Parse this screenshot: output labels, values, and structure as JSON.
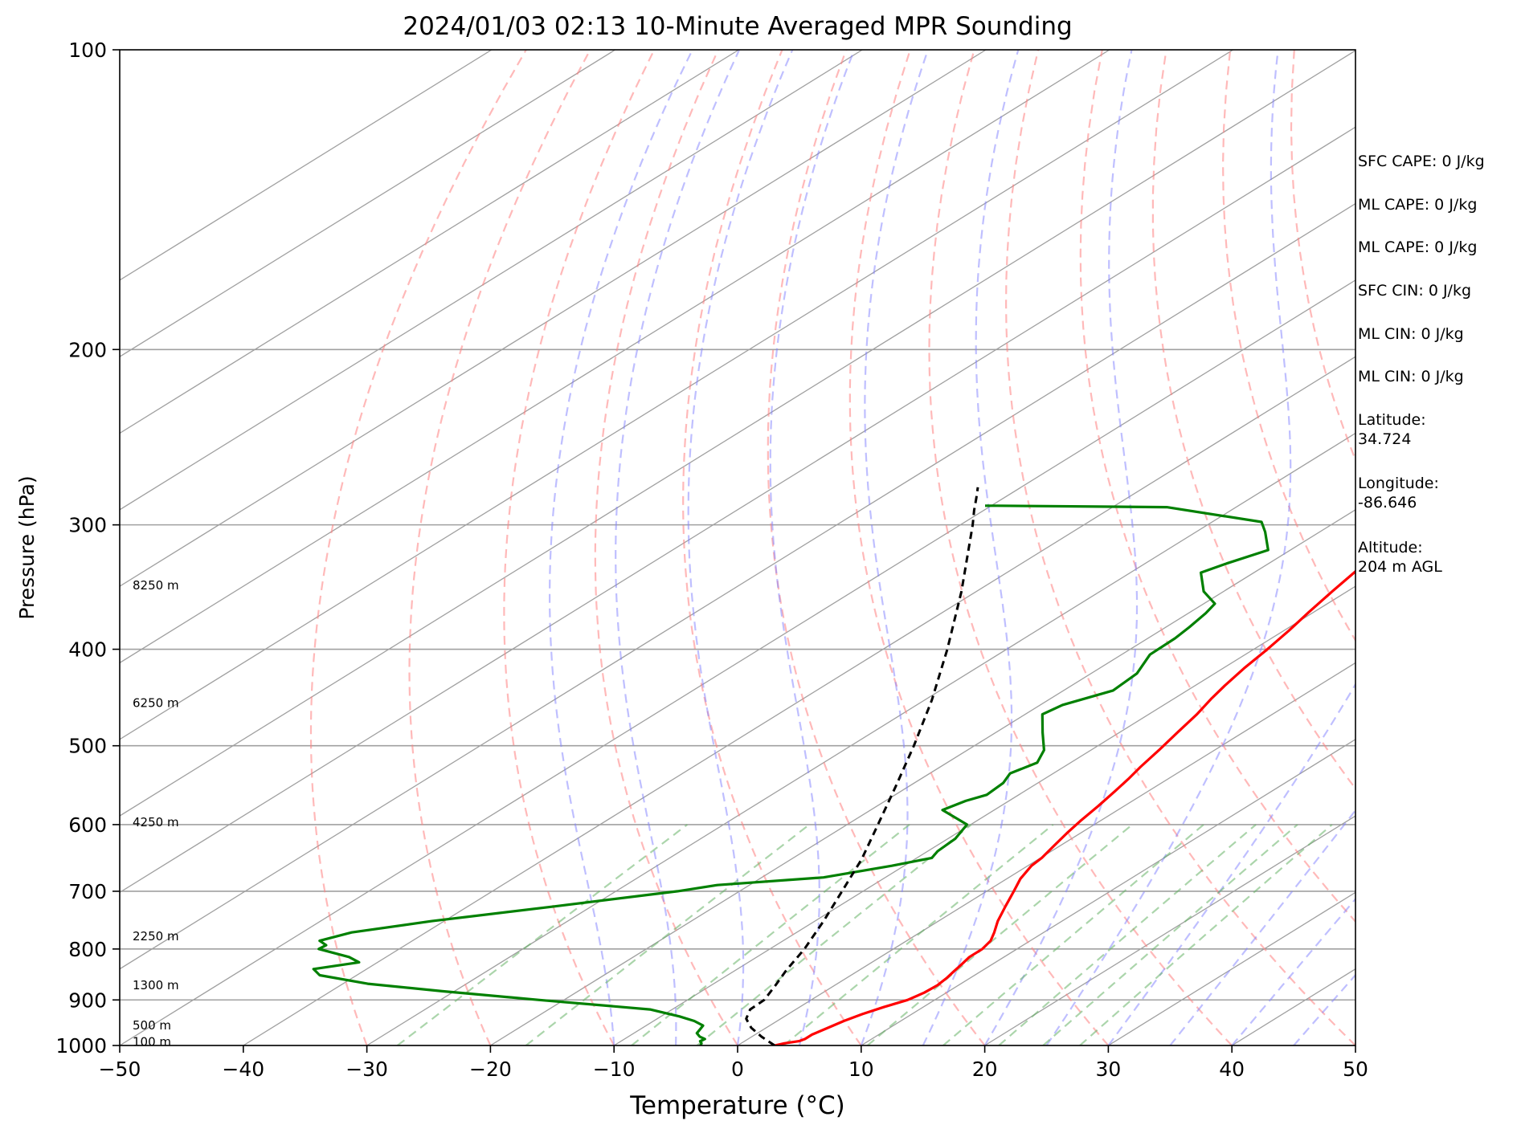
{
  "chart_data": {
    "type": "line",
    "title": "2024/01/03 02:13 10-Minute Averaged MPR Sounding",
    "xlabel": "Temperature (°C)",
    "ylabel": "Pressure (hPa)",
    "xlim": [
      -50,
      50
    ],
    "ylim": [
      1000,
      100
    ],
    "y_scale": "log",
    "x_ticks": [
      "−50",
      "−40",
      "−30",
      "−20",
      "−10",
      "0",
      "10",
      "20",
      "30",
      "40",
      "50"
    ],
    "y_ticks": [
      {
        "p": 100,
        "label": "100"
      },
      {
        "p": 200,
        "label": "200"
      },
      {
        "p": 300,
        "label": "300"
      },
      {
        "p": 400,
        "label": "400"
      },
      {
        "p": 500,
        "label": "500"
      },
      {
        "p": 600,
        "label": "600"
      },
      {
        "p": 700,
        "label": "700"
      },
      {
        "p": 800,
        "label": "800"
      },
      {
        "p": 900,
        "label": "900"
      },
      {
        "p": 1000,
        "label": "1000"
      }
    ],
    "grid": true,
    "height_labels": [
      {
        "p": 345,
        "label": "8250 m"
      },
      {
        "p": 453,
        "label": "6250 m"
      },
      {
        "p": 597,
        "label": "4250 m"
      },
      {
        "p": 777,
        "label": "2250 m"
      },
      {
        "p": 870,
        "label": "1300 m"
      },
      {
        "p": 955,
        "label": "500 m"
      },
      {
        "p": 992,
        "label": "100 m"
      }
    ],
    "series": [
      {
        "role": "temperature",
        "color": "#ff0000",
        "points": [
          [
            1000,
            3.0
          ],
          [
            995,
            3.5
          ],
          [
            990,
            4.4
          ],
          [
            985,
            4.6
          ],
          [
            975,
            4.6
          ],
          [
            960,
            5.0
          ],
          [
            945,
            5.4
          ],
          [
            930,
            6.0
          ],
          [
            915,
            6.8
          ],
          [
            900,
            7.8
          ],
          [
            885,
            8.2
          ],
          [
            870,
            8.3
          ],
          [
            855,
            8.1
          ],
          [
            842,
            7.8
          ],
          [
            828,
            7.5
          ],
          [
            815,
            7.2
          ],
          [
            800,
            7.2
          ],
          [
            785,
            6.8
          ],
          [
            770,
            6.0
          ],
          [
            750,
            4.8
          ],
          [
            725,
            3.5
          ],
          [
            700,
            2.2
          ],
          [
            680,
            1.1
          ],
          [
            660,
            0.3
          ],
          [
            648,
            0.1
          ],
          [
            630,
            -0.5
          ],
          [
            612,
            -1.1
          ],
          [
            595,
            -1.6
          ],
          [
            575,
            -2.1
          ],
          [
            555,
            -2.7
          ],
          [
            540,
            -3.2
          ],
          [
            525,
            -3.8
          ],
          [
            505,
            -4.5
          ],
          [
            485,
            -5.3
          ],
          [
            465,
            -6.1
          ],
          [
            448,
            -7.0
          ],
          [
            435,
            -7.6
          ],
          [
            418,
            -8.3
          ],
          [
            400,
            -8.9
          ],
          [
            383,
            -9.6
          ],
          [
            367,
            -10.4
          ],
          [
            350,
            -11.2
          ],
          [
            335,
            -11.9
          ],
          [
            320,
            -12.6
          ],
          [
            305,
            -13.2
          ],
          [
            292,
            -13.9
          ],
          [
            280,
            -14.6
          ],
          [
            270,
            -15.4
          ],
          [
            262,
            -16.0
          ]
        ]
      },
      {
        "role": "dewpoint",
        "color": "#008000",
        "points": [
          [
            1000,
            -3.0
          ],
          [
            995,
            -3.2
          ],
          [
            990,
            -3.6
          ],
          [
            985,
            -3.5
          ],
          [
            980,
            -4.2
          ],
          [
            972,
            -4.9
          ],
          [
            965,
            -5.1
          ],
          [
            955,
            -5.4
          ],
          [
            945,
            -6.7
          ],
          [
            935,
            -8.5
          ],
          [
            920,
            -11.8
          ],
          [
            900,
            -22.0
          ],
          [
            882,
            -31.0
          ],
          [
            867,
            -38.0
          ],
          [
            850,
            -43.0
          ],
          [
            838,
            -44.3
          ],
          [
            825,
            -41.5
          ],
          [
            815,
            -43.0
          ],
          [
            800,
            -46.5
          ],
          [
            793,
            -46.4
          ],
          [
            785,
            -47.5
          ],
          [
            770,
            -46.0
          ],
          [
            750,
            -41.0
          ],
          [
            725,
            -33.0
          ],
          [
            700,
            -25.0
          ],
          [
            690,
            -22.6
          ],
          [
            678,
            -15.0
          ],
          [
            660,
            -11.0
          ],
          [
            648,
            -8.8
          ],
          [
            638,
            -9.2
          ],
          [
            620,
            -9.4
          ],
          [
            600,
            -10.3
          ],
          [
            580,
            -14.2
          ],
          [
            568,
            -13.5
          ],
          [
            560,
            -12.6
          ],
          [
            545,
            -12.8
          ],
          [
            533,
            -13.5
          ],
          [
            520,
            -12.7
          ],
          [
            505,
            -13.8
          ],
          [
            485,
            -16.2
          ],
          [
            465,
            -18.6
          ],
          [
            455,
            -18.2
          ],
          [
            440,
            -16.0
          ],
          [
            423,
            -16.3
          ],
          [
            405,
            -17.7
          ],
          [
            390,
            -17.8
          ],
          [
            380,
            -18.1
          ],
          [
            368,
            -18.6
          ],
          [
            360,
            -19.1
          ],
          [
            350,
            -21.6
          ],
          [
            335,
            -24.3
          ],
          [
            328,
            -23.4
          ],
          [
            318,
            -21.8
          ],
          [
            305,
            -24.4
          ],
          [
            298,
            -26.0
          ],
          [
            288,
            -35.6
          ],
          [
            287,
            -49.5
          ],
          [
            287,
            -50.5
          ]
        ]
      },
      {
        "role": "parcel",
        "color": "#000000",
        "points": [
          [
            1000,
            3.0
          ],
          [
            980,
            0.8
          ],
          [
            960,
            -1.2
          ],
          [
            940,
            -2.8
          ],
          [
            920,
            -3.7
          ],
          [
            900,
            -3.8
          ],
          [
            870,
            -4.8
          ],
          [
            840,
            -5.9
          ],
          [
            800,
            -7.2
          ],
          [
            750,
            -9.3
          ],
          [
            700,
            -11.7
          ],
          [
            650,
            -14.3
          ],
          [
            600,
            -17.5
          ],
          [
            550,
            -21.0
          ],
          [
            500,
            -24.9
          ],
          [
            450,
            -29.4
          ],
          [
            400,
            -34.8
          ],
          [
            350,
            -41.2
          ],
          [
            300,
            -49.0
          ],
          [
            290,
            -50.8
          ],
          [
            282,
            -52.2
          ],
          [
            275,
            -53.5
          ]
        ]
      }
    ],
    "dry_adiabats_theta_C": [
      -30,
      -20,
      -10,
      0,
      10,
      20,
      30,
      40,
      50,
      60,
      70,
      80,
      90,
      100,
      110,
      120,
      130,
      140,
      150,
      160,
      170,
      180,
      190,
      200,
      210,
      220,
      230,
      240,
      250
    ],
    "moist_adiabats_start_C": [
      -10,
      -5,
      0,
      5,
      10,
      15,
      20,
      25,
      30,
      35,
      40,
      45
    ],
    "mixing_lines_gkg": [
      0.4,
      1,
      2,
      3,
      5,
      8,
      12,
      16,
      20,
      24
    ],
    "annotations": [
      {
        "name": "sfc-cape-text",
        "text": "SFC CAPE: 0 J/kg"
      },
      {
        "name": "ml-cape-text",
        "text": "ML CAPE: 0 J/kg"
      },
      {
        "name": "mu-cape-text",
        "text": "ML CAPE: 0 J/kg"
      },
      {
        "name": "sfc-cin-text",
        "text": "SFC CIN: 0 J/kg"
      },
      {
        "name": "ml-cin-text",
        "text": "ML CIN: 0 J/kg"
      },
      {
        "name": "mu-cin-text",
        "text": "ML CIN: 0 J/kg"
      }
    ],
    "site": {
      "latitude_label": "Latitude:",
      "latitude": "34.724",
      "longitude_label": "Longitude:",
      "longitude": "-86.646",
      "altitude_label": "Altitude:",
      "altitude": "204 m AGL"
    },
    "colors": {
      "dry_adiabat": "#ff8080",
      "moist_adiabat": "#8080ff",
      "mixing_line": "#66b266",
      "isotherm": "#a0a0a0",
      "isobar": "#a0a0a0"
    }
  }
}
